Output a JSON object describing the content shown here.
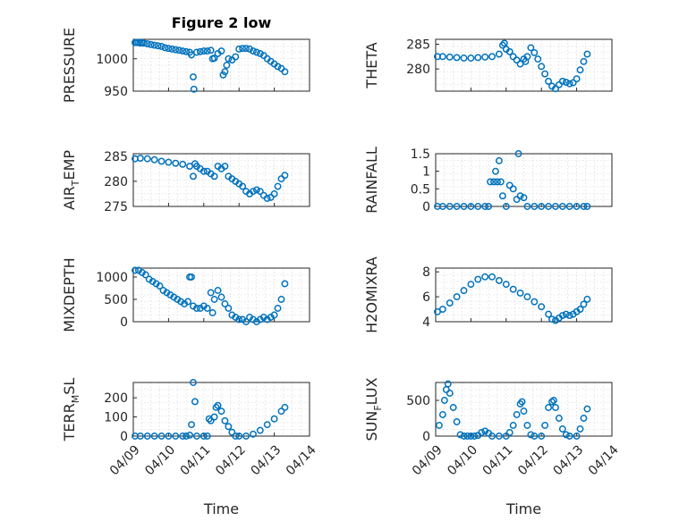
{
  "figure": {
    "title": "Figure 2 low"
  },
  "x_axis": {
    "label": "Time",
    "ticks": [
      "04/09",
      "04/10",
      "04/11",
      "04/12",
      "04/13",
      "04/14"
    ]
  },
  "colors": {
    "marker": "#0072BD",
    "axis": "#262626"
  },
  "chart_data": [
    {
      "type": "scatter",
      "ylabel": "PRESSURE",
      "ylabel_sub": "",
      "ylim": [
        950,
        1030
      ],
      "yticks": [
        950,
        1000
      ],
      "title": "Figure 2 low",
      "points": [
        [
          0.05,
          1025
        ],
        [
          0.1,
          1025
        ],
        [
          0.15,
          1025
        ],
        [
          0.2,
          1024
        ],
        [
          0.25,
          1025
        ],
        [
          0.3,
          1024
        ],
        [
          0.4,
          1023
        ],
        [
          0.5,
          1022
        ],
        [
          0.6,
          1021
        ],
        [
          0.7,
          1020
        ],
        [
          0.8,
          1019
        ],
        [
          0.9,
          1017
        ],
        [
          1.0,
          1016
        ],
        [
          1.1,
          1015
        ],
        [
          1.2,
          1014
        ],
        [
          1.3,
          1013
        ],
        [
          1.4,
          1012
        ],
        [
          1.5,
          1011
        ],
        [
          1.6,
          1010
        ],
        [
          1.65,
          1006
        ],
        [
          1.7,
          972
        ],
        [
          1.72,
          953
        ],
        [
          1.8,
          1010
        ],
        [
          1.9,
          1011
        ],
        [
          2.0,
          1012
        ],
        [
          2.1,
          1012
        ],
        [
          2.2,
          1013
        ],
        [
          2.25,
          1000
        ],
        [
          2.3,
          1001
        ],
        [
          2.4,
          1008
        ],
        [
          2.5,
          1012
        ],
        [
          2.55,
          975
        ],
        [
          2.6,
          980
        ],
        [
          2.65,
          990
        ],
        [
          2.7,
          1000
        ],
        [
          2.8,
          998
        ],
        [
          2.9,
          1003
        ],
        [
          3.0,
          1015
        ],
        [
          3.1,
          1016
        ],
        [
          3.2,
          1016
        ],
        [
          3.3,
          1015
        ],
        [
          3.4,
          1012
        ],
        [
          3.5,
          1010
        ],
        [
          3.6,
          1008
        ],
        [
          3.7,
          1005
        ],
        [
          3.8,
          1000
        ],
        [
          3.9,
          996
        ],
        [
          4.0,
          992
        ],
        [
          4.1,
          988
        ],
        [
          4.2,
          985
        ],
        [
          4.3,
          980
        ]
      ]
    },
    {
      "type": "scatter",
      "ylabel": "THETA",
      "ylabel_sub": "",
      "ylim": [
        275.5,
        286
      ],
      "yticks": [
        280,
        285
      ],
      "points": [
        [
          0.05,
          282.5
        ],
        [
          0.2,
          282.5
        ],
        [
          0.4,
          282.4
        ],
        [
          0.6,
          282.3
        ],
        [
          0.8,
          282.2
        ],
        [
          1.0,
          282.2
        ],
        [
          1.2,
          282.3
        ],
        [
          1.4,
          282.4
        ],
        [
          1.6,
          282.5
        ],
        [
          1.8,
          283.0
        ],
        [
          1.9,
          284.8
        ],
        [
          1.95,
          285.2
        ],
        [
          2.0,
          284.0
        ],
        [
          2.1,
          283.5
        ],
        [
          2.2,
          282.5
        ],
        [
          2.3,
          281.8
        ],
        [
          2.4,
          281.0
        ],
        [
          2.5,
          282.0
        ],
        [
          2.55,
          281.5
        ],
        [
          2.6,
          282.5
        ],
        [
          2.7,
          284.3
        ],
        [
          2.8,
          283.3
        ],
        [
          2.9,
          282.0
        ],
        [
          3.0,
          280.5
        ],
        [
          3.1,
          279.0
        ],
        [
          3.2,
          277.5
        ],
        [
          3.3,
          276.5
        ],
        [
          3.4,
          276.0
        ],
        [
          3.5,
          276.8
        ],
        [
          3.6,
          277.5
        ],
        [
          3.7,
          277.3
        ],
        [
          3.8,
          277.0
        ],
        [
          3.9,
          277.2
        ],
        [
          4.0,
          278.0
        ],
        [
          4.1,
          279.8
        ],
        [
          4.2,
          281.5
        ],
        [
          4.3,
          283.0
        ]
      ]
    },
    {
      "type": "scatter",
      "ylabel": "AIR",
      "ylabel_sub": "TEMP",
      "ylim": [
        275,
        285.5
      ],
      "yticks": [
        275,
        280,
        285
      ],
      "points": [
        [
          0.05,
          284.5
        ],
        [
          0.2,
          284.6
        ],
        [
          0.4,
          284.5
        ],
        [
          0.6,
          284.3
        ],
        [
          0.8,
          284.0
        ],
        [
          1.0,
          283.8
        ],
        [
          1.2,
          283.6
        ],
        [
          1.4,
          283.4
        ],
        [
          1.6,
          283.0
        ],
        [
          1.7,
          281.0
        ],
        [
          1.75,
          283.5
        ],
        [
          1.8,
          283.0
        ],
        [
          1.9,
          282.5
        ],
        [
          2.0,
          282.0
        ],
        [
          2.1,
          282.0
        ],
        [
          2.2,
          281.5
        ],
        [
          2.3,
          281.0
        ],
        [
          2.4,
          283.0
        ],
        [
          2.5,
          282.5
        ],
        [
          2.6,
          283.0
        ],
        [
          2.7,
          281.0
        ],
        [
          2.8,
          280.5
        ],
        [
          2.9,
          280.0
        ],
        [
          3.0,
          279.5
        ],
        [
          3.1,
          279.0
        ],
        [
          3.2,
          278.0
        ],
        [
          3.3,
          277.5
        ],
        [
          3.4,
          278.0
        ],
        [
          3.5,
          278.3
        ],
        [
          3.6,
          278.0
        ],
        [
          3.7,
          277.2
        ],
        [
          3.8,
          276.6
        ],
        [
          3.9,
          276.8
        ],
        [
          4.0,
          277.5
        ],
        [
          4.1,
          279.0
        ],
        [
          4.2,
          280.5
        ],
        [
          4.3,
          281.2
        ]
      ]
    },
    {
      "type": "scatter",
      "ylabel": "RAINFALL",
      "ylabel_sub": "",
      "ylim": [
        0,
        1.5
      ],
      "yticks": [
        0,
        0.5,
        1,
        1.5
      ],
      "points": [
        [
          0.05,
          0
        ],
        [
          0.2,
          0
        ],
        [
          0.4,
          0
        ],
        [
          0.6,
          0
        ],
        [
          0.8,
          0
        ],
        [
          1.0,
          0
        ],
        [
          1.2,
          0
        ],
        [
          1.4,
          0
        ],
        [
          1.5,
          0
        ],
        [
          1.55,
          0.7
        ],
        [
          1.65,
          0.7
        ],
        [
          1.7,
          1.0
        ],
        [
          1.75,
          0.7
        ],
        [
          1.8,
          1.3
        ],
        [
          1.85,
          0.7
        ],
        [
          1.9,
          0.3
        ],
        [
          2.0,
          0
        ],
        [
          2.1,
          0.6
        ],
        [
          2.2,
          0.5
        ],
        [
          2.3,
          0.2
        ],
        [
          2.35,
          1.5
        ],
        [
          2.4,
          0.3
        ],
        [
          2.5,
          0.25
        ],
        [
          2.6,
          0
        ],
        [
          2.8,
          0
        ],
        [
          3.0,
          0
        ],
        [
          3.2,
          0
        ],
        [
          3.4,
          0
        ],
        [
          3.6,
          0
        ],
        [
          3.8,
          0
        ],
        [
          4.0,
          0
        ],
        [
          4.2,
          0
        ],
        [
          4.3,
          0
        ]
      ]
    },
    {
      "type": "scatter",
      "ylabel": "MIXDEPTH",
      "ylabel_sub": "",
      "ylim": [
        0,
        1200
      ],
      "yticks": [
        0,
        500,
        1000
      ],
      "points": [
        [
          0.05,
          1150
        ],
        [
          0.15,
          1150
        ],
        [
          0.25,
          1100
        ],
        [
          0.35,
          1050
        ],
        [
          0.45,
          950
        ],
        [
          0.55,
          900
        ],
        [
          0.65,
          850
        ],
        [
          0.75,
          800
        ],
        [
          0.85,
          700
        ],
        [
          0.95,
          650
        ],
        [
          1.05,
          600
        ],
        [
          1.15,
          550
        ],
        [
          1.25,
          500
        ],
        [
          1.35,
          450
        ],
        [
          1.45,
          400
        ],
        [
          1.55,
          450
        ],
        [
          1.6,
          1000
        ],
        [
          1.65,
          1000
        ],
        [
          1.7,
          350
        ],
        [
          1.8,
          300
        ],
        [
          1.9,
          300
        ],
        [
          2.0,
          350
        ],
        [
          2.1,
          300
        ],
        [
          2.2,
          650
        ],
        [
          2.25,
          200
        ],
        [
          2.3,
          500
        ],
        [
          2.4,
          700
        ],
        [
          2.5,
          550
        ],
        [
          2.6,
          400
        ],
        [
          2.7,
          300
        ],
        [
          2.8,
          150
        ],
        [
          2.9,
          100
        ],
        [
          3.0,
          50
        ],
        [
          3.1,
          50
        ],
        [
          3.2,
          0
        ],
        [
          3.3,
          100
        ],
        [
          3.4,
          50
        ],
        [
          3.5,
          0
        ],
        [
          3.6,
          50
        ],
        [
          3.7,
          100
        ],
        [
          3.8,
          50
        ],
        [
          3.9,
          100
        ],
        [
          4.0,
          150
        ],
        [
          4.1,
          300
        ],
        [
          4.2,
          500
        ],
        [
          4.3,
          850
        ]
      ]
    },
    {
      "type": "scatter",
      "ylabel": "H2OMIXRA",
      "ylabel_sub": "",
      "ylim": [
        4,
        8.3
      ],
      "yticks": [
        4,
        6,
        8
      ],
      "points": [
        [
          0.05,
          4.8
        ],
        [
          0.2,
          5.0
        ],
        [
          0.4,
          5.5
        ],
        [
          0.6,
          6.0
        ],
        [
          0.8,
          6.5
        ],
        [
          1.0,
          7.0
        ],
        [
          1.2,
          7.4
        ],
        [
          1.4,
          7.6
        ],
        [
          1.6,
          7.6
        ],
        [
          1.8,
          7.3
        ],
        [
          2.0,
          7.0
        ],
        [
          2.2,
          6.6
        ],
        [
          2.4,
          6.3
        ],
        [
          2.6,
          6.0
        ],
        [
          2.8,
          5.6
        ],
        [
          3.0,
          5.2
        ],
        [
          3.2,
          4.6
        ],
        [
          3.3,
          4.2
        ],
        [
          3.4,
          4.1
        ],
        [
          3.5,
          4.3
        ],
        [
          3.6,
          4.5
        ],
        [
          3.7,
          4.6
        ],
        [
          3.8,
          4.5
        ],
        [
          3.9,
          4.6
        ],
        [
          4.0,
          4.8
        ],
        [
          4.1,
          5.0
        ],
        [
          4.2,
          5.4
        ],
        [
          4.3,
          5.8
        ]
      ]
    },
    {
      "type": "scatter",
      "ylabel": "TERR",
      "ylabel_sub": "MSL",
      "ylim": [
        0,
        280
      ],
      "yticks": [
        0,
        100,
        200
      ],
      "points": [
        [
          0.05,
          0
        ],
        [
          0.2,
          0
        ],
        [
          0.4,
          0
        ],
        [
          0.6,
          0
        ],
        [
          0.8,
          0
        ],
        [
          1.0,
          0
        ],
        [
          1.2,
          0
        ],
        [
          1.4,
          0
        ],
        [
          1.5,
          0
        ],
        [
          1.6,
          5
        ],
        [
          1.65,
          60
        ],
        [
          1.7,
          280
        ],
        [
          1.75,
          180
        ],
        [
          1.8,
          0
        ],
        [
          2.0,
          0
        ],
        [
          2.1,
          0
        ],
        [
          2.15,
          90
        ],
        [
          2.2,
          80
        ],
        [
          2.3,
          100
        ],
        [
          2.35,
          150
        ],
        [
          2.4,
          160
        ],
        [
          2.5,
          130
        ],
        [
          2.6,
          80
        ],
        [
          2.7,
          50
        ],
        [
          2.8,
          20
        ],
        [
          2.9,
          0
        ],
        [
          3.0,
          0
        ],
        [
          3.2,
          0
        ],
        [
          3.4,
          10
        ],
        [
          3.6,
          30
        ],
        [
          3.8,
          60
        ],
        [
          4.0,
          90
        ],
        [
          4.2,
          130
        ],
        [
          4.3,
          150
        ]
      ]
    },
    {
      "type": "scatter",
      "ylabel": "SUN",
      "ylabel_sub": "FLUX",
      "ylim": [
        0,
        750
      ],
      "yticks": [
        0,
        500
      ],
      "points": [
        [
          0.1,
          150
        ],
        [
          0.2,
          300
        ],
        [
          0.25,
          500
        ],
        [
          0.3,
          650
        ],
        [
          0.35,
          730
        ],
        [
          0.4,
          600
        ],
        [
          0.5,
          400
        ],
        [
          0.6,
          200
        ],
        [
          0.7,
          20
        ],
        [
          0.8,
          0
        ],
        [
          0.9,
          0
        ],
        [
          1.0,
          0
        ],
        [
          1.1,
          0
        ],
        [
          1.2,
          10
        ],
        [
          1.3,
          50
        ],
        [
          1.4,
          70
        ],
        [
          1.5,
          40
        ],
        [
          1.6,
          0
        ],
        [
          1.8,
          0
        ],
        [
          2.0,
          0
        ],
        [
          2.1,
          50
        ],
        [
          2.2,
          150
        ],
        [
          2.3,
          300
        ],
        [
          2.4,
          450
        ],
        [
          2.45,
          480
        ],
        [
          2.5,
          350
        ],
        [
          2.6,
          150
        ],
        [
          2.7,
          20
        ],
        [
          2.8,
          0
        ],
        [
          3.0,
          0
        ],
        [
          3.1,
          150
        ],
        [
          3.2,
          400
        ],
        [
          3.3,
          480
        ],
        [
          3.35,
          500
        ],
        [
          3.4,
          400
        ],
        [
          3.5,
          250
        ],
        [
          3.6,
          100
        ],
        [
          3.7,
          20
        ],
        [
          3.8,
          0
        ],
        [
          4.0,
          0
        ],
        [
          4.1,
          100
        ],
        [
          4.2,
          250
        ],
        [
          4.3,
          380
        ]
      ]
    }
  ]
}
